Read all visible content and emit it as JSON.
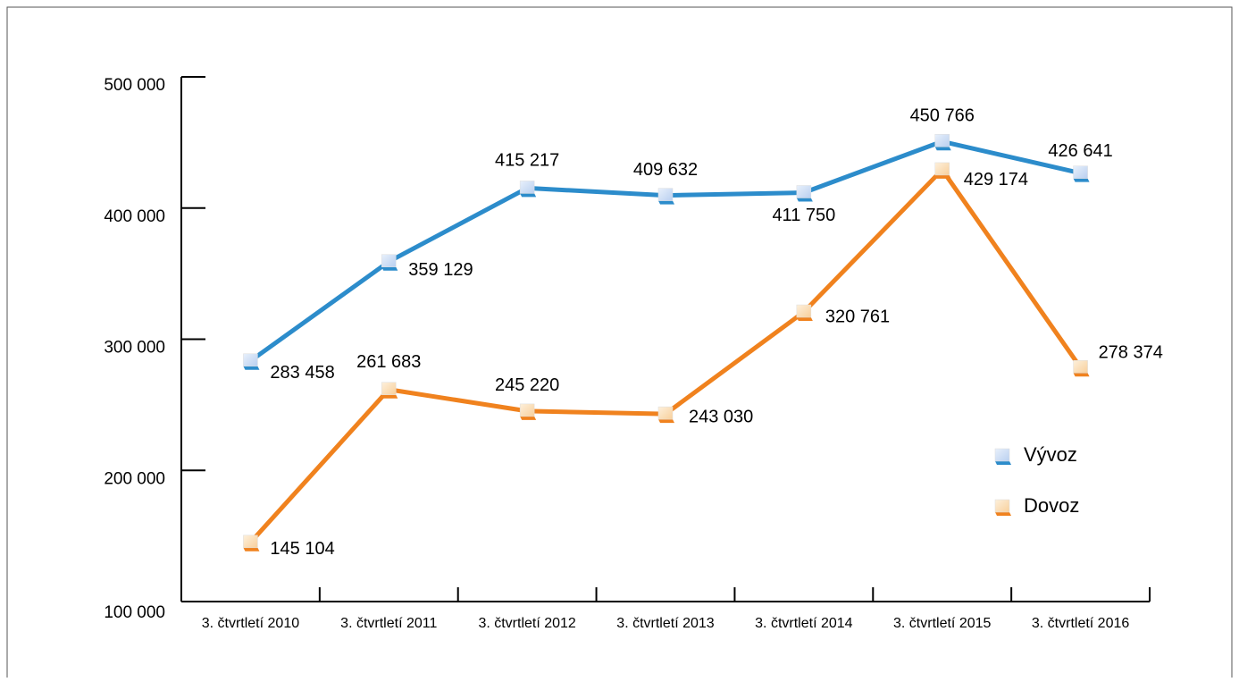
{
  "chart_data": {
    "type": "line",
    "categories": [
      "3. čtvrtletí 2010",
      "3. čtvrtletí 2011",
      "3. čtvrtletí 2012",
      "3. čtvrtletí 2013",
      "3. čtvrtletí 2014",
      "3. čtvrtletí 2015",
      "3. čtvrtletí 2016"
    ],
    "series": [
      {
        "name": "Vývoz",
        "color": "#2c8ccb",
        "values": [
          283458,
          359129,
          415217,
          409632,
          411750,
          450766,
          426641
        ],
        "value_labels": [
          "283 458",
          "359 129",
          "415 217",
          "409 632",
          "411 750",
          "450 766",
          "426 641"
        ]
      },
      {
        "name": "Dovoz",
        "color": "#f0821e",
        "values": [
          145104,
          261683,
          245220,
          243030,
          320761,
          429174,
          278374
        ],
        "value_labels": [
          "145 104",
          "261 683",
          "245 220",
          "243 030",
          "320 761",
          "429 174",
          "278 374"
        ]
      }
    ],
    "ylim": [
      100000,
      500000
    ],
    "yticks": [
      {
        "value": 100000,
        "label": "100 000"
      },
      {
        "value": 200000,
        "label": "200 000"
      },
      {
        "value": 300000,
        "label": "300 000"
      },
      {
        "value": 400000,
        "label": "400 000"
      },
      {
        "value": 500000,
        "label": "500 000"
      }
    ],
    "legend": "right"
  }
}
